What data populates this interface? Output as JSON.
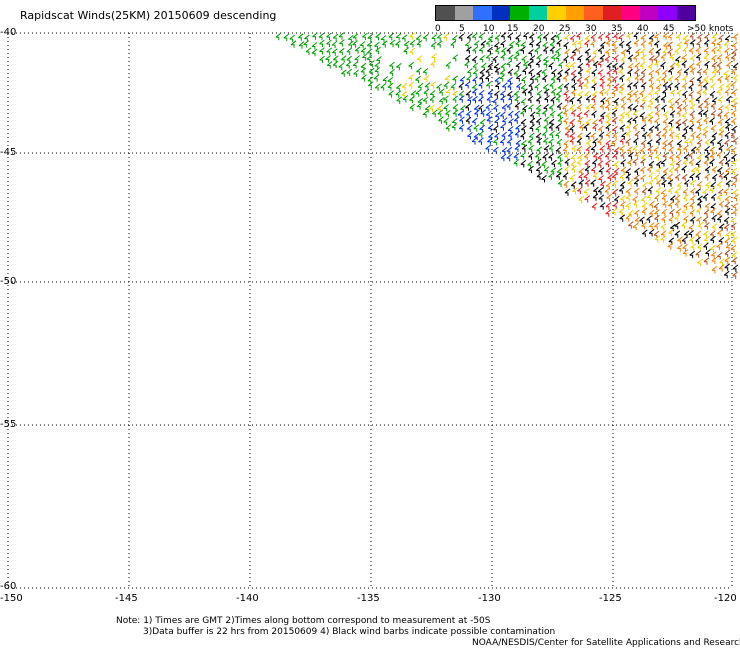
{
  "title": "Rapidscat Winds(25KM) 20150609 descending",
  "legend": {
    "labels": [
      "0",
      "5",
      "10",
      "15",
      "20",
      "25",
      "30",
      "35",
      "40",
      "45",
      ">50 knots"
    ],
    "colors": [
      "#505050",
      "#a0a0a0",
      "#3070ff",
      "#0030c0",
      "#00b000",
      "#00d0a0",
      "#ffd000",
      "#ffa000",
      "#ff6020",
      "#e02020",
      "#ff0080",
      "#c000c0",
      "#9000ff",
      "#5000a0"
    ]
  },
  "axes": {
    "y_labels": [
      "-40",
      "-45",
      "-50",
      "-55",
      "-60"
    ],
    "x_labels": [
      "-150",
      "-145",
      "-140",
      "-135",
      "-130",
      "-125",
      "-120"
    ],
    "lon_range": [
      -150,
      -120
    ],
    "lat_range": [
      -60,
      -40
    ]
  },
  "notes": [
    "Note: 1) Times are GMT 2)Times along bottom correspond to measurement at -50S",
    "3)Data buffer is 22 hrs from 20150609 4) Black wind barbs indicate possible contamination",
    "NOAA/NESDIS/Center for Satellite Applications and Research"
  ],
  "barb_colors": {
    "green": "#00a000",
    "blue": "#0030e0",
    "black": "#000000",
    "yellow": "#f0d000",
    "orange": "#f08000",
    "red": "#e02020",
    "brown": "#b05020"
  }
}
